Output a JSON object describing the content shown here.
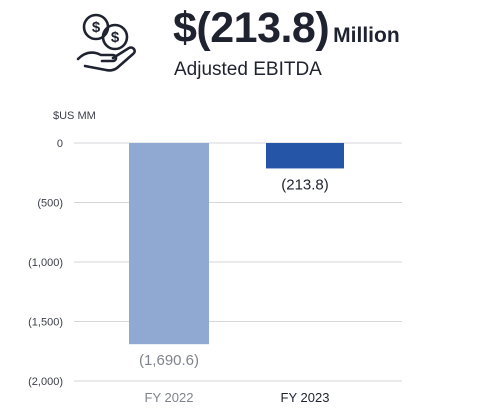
{
  "header": {
    "value": "$(213.8)",
    "unit": "Million",
    "subtitle": "Adjusted EBITDA",
    "icon": "hand-with-coins-icon"
  },
  "chart_data": {
    "type": "bar",
    "unit_label": "$US MM",
    "categories": [
      "FY 2022",
      "FY 2023"
    ],
    "values": [
      -1690.6,
      -213.8
    ],
    "data_labels": [
      "(1,690.6)",
      "(213.8)"
    ],
    "bar_colors": [
      "#8fa9d3",
      "#2455a6"
    ],
    "category_colors": [
      "#7f838c",
      "#1f2330"
    ],
    "data_label_colors": [
      "#7f838c",
      "#1f2330"
    ],
    "ylim": [
      -2000,
      0
    ],
    "yticks": [
      0,
      -500,
      -1000,
      -1500,
      -2000
    ],
    "ytick_labels": [
      "0",
      "(500)",
      "(1,000)",
      "(1,500)",
      "(2,000)"
    ],
    "grid": true
  }
}
